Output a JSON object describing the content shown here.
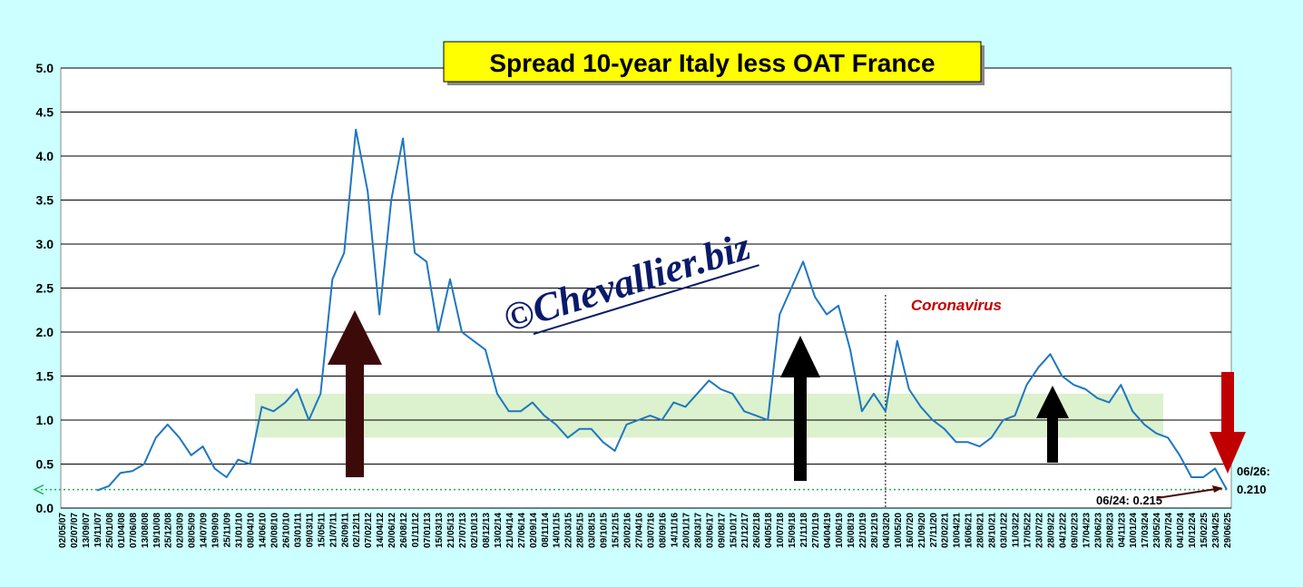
{
  "chart_data": {
    "type": "line",
    "title": "Spread 10-year Italy less OAT France",
    "watermark": "©Chevallier.biz",
    "categories": [
      "02/05/07",
      "02/07/07",
      "13/09/07",
      "19/11/07",
      "25/01/08",
      "01/04/08",
      "07/06/08",
      "13/08/08",
      "19/10/08",
      "25/12/08",
      "02/03/09",
      "08/05/09",
      "14/07/09",
      "19/09/09",
      "25/11/09",
      "31/01/10",
      "08/04/10",
      "14/06/10",
      "20/08/10",
      "26/10/10",
      "03/01/11",
      "09/03/11",
      "15/05/11",
      "21/07/11",
      "26/09/11",
      "02/12/11",
      "07/02/12",
      "14/04/12",
      "20/06/12",
      "26/08/12",
      "01/11/12",
      "07/01/13",
      "15/03/13",
      "21/05/13",
      "27/07/13",
      "02/10/13",
      "08/12/13",
      "13/02/14",
      "21/04/14",
      "27/06/14",
      "02/09/14",
      "08/11/14",
      "14/01/15",
      "22/03/15",
      "28/05/15",
      "03/08/15",
      "09/10/15",
      "15/12/15",
      "20/02/16",
      "27/04/16",
      "03/07/16",
      "08/09/16",
      "14/11/16",
      "20/01/17",
      "28/03/17",
      "03/06/17",
      "09/08/17",
      "15/10/17",
      "21/12/17",
      "26/02/18",
      "04/05/18",
      "10/07/18",
      "15/09/18",
      "21/11/18",
      "27/01/19",
      "04/04/19",
      "10/06/19",
      "16/08/19",
      "22/10/19",
      "28/12/19",
      "04/03/20",
      "10/05/20",
      "16/07/20",
      "21/09/20",
      "27/11/20",
      "02/02/21",
      "10/04/21",
      "16/06/21",
      "28/08/21",
      "28/10/21",
      "03/01/22",
      "11/03/22",
      "17/05/22",
      "23/07/22",
      "28/09/22",
      "04/12/22",
      "09/02/23",
      "17/04/23",
      "23/06/23",
      "29/08/23",
      "04/11/23",
      "10/01/24",
      "17/03/24",
      "23/05/24",
      "29/07/24",
      "04/10/24",
      "10/12/24",
      "15/02/25",
      "23/04/25",
      "29/06/25"
    ],
    "values": [
      null,
      null,
      null,
      0.2,
      0.25,
      0.4,
      0.42,
      0.5,
      0.8,
      0.95,
      0.8,
      0.6,
      0.7,
      0.45,
      0.35,
      0.55,
      0.5,
      1.15,
      1.1,
      1.2,
      1.35,
      1.0,
      1.3,
      2.6,
      2.9,
      4.3,
      3.6,
      2.2,
      3.5,
      4.2,
      2.9,
      2.8,
      2.0,
      2.6,
      2.0,
      1.9,
      1.8,
      1.3,
      1.1,
      1.1,
      1.2,
      1.05,
      0.95,
      0.8,
      0.9,
      0.9,
      0.75,
      0.65,
      0.95,
      1.0,
      1.05,
      1.0,
      1.2,
      1.15,
      1.3,
      1.45,
      1.35,
      1.3,
      1.1,
      1.05,
      1.0,
      2.2,
      2.5,
      2.8,
      2.4,
      2.2,
      2.3,
      1.8,
      1.1,
      1.3,
      1.1,
      1.9,
      1.35,
      1.15,
      1.0,
      0.9,
      0.75,
      0.75,
      0.7,
      0.8,
      1.0,
      1.05,
      1.4,
      1.6,
      1.75,
      1.5,
      1.4,
      1.35,
      1.25,
      1.2,
      1.4,
      1.1,
      0.95,
      0.85,
      0.8,
      0.6,
      0.35,
      0.35,
      0.45,
      0.21
    ],
    "color": "#1f77c0",
    "ylim": [
      0,
      5
    ],
    "yticks": [
      {
        "value": 0,
        "label": "0.0"
      },
      0.5,
      {
        "value": 1,
        "label": "1.0"
      },
      1.5,
      {
        "value": 2,
        "label": "2.0"
      },
      2.5,
      {
        "value": 3,
        "label": "3.0"
      },
      3.5,
      {
        "value": 4,
        "label": "4.0"
      },
      4.5,
      {
        "value": 5,
        "label": "5.0"
      }
    ],
    "grid": true,
    "band": [
      0.8,
      1.3
    ],
    "reference_line": 0.21,
    "event": {
      "text": "Coronavirus",
      "at": "04/03/20"
    },
    "annotations": [
      "06/26:",
      "0.210",
      "06/24: 0.215"
    ]
  }
}
